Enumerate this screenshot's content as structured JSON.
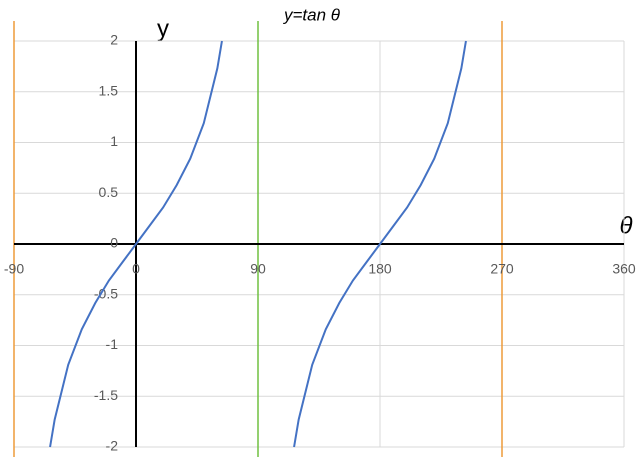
{
  "chart_data": {
    "type": "line",
    "title": "y=tan θ",
    "x_label": "θ",
    "y_label": "y",
    "x": [
      -63.4,
      -60,
      -50,
      -40,
      -30,
      -20,
      -10,
      0,
      10,
      20,
      30,
      40,
      50,
      60,
      63.4,
      90,
      116.6,
      120,
      130,
      140,
      150,
      160,
      170,
      180,
      190,
      200,
      210,
      220,
      230,
      240,
      243.4
    ],
    "series": [
      {
        "name": "tan",
        "color": "#4472c4",
        "values": [
          -2.0,
          -1.73,
          -1.19,
          -0.84,
          -0.58,
          -0.36,
          -0.18,
          0,
          0.18,
          0.36,
          0.58,
          0.84,
          1.19,
          1.73,
          2.0,
          null,
          -2.0,
          -1.73,
          -1.19,
          -0.84,
          -0.58,
          -0.36,
          -0.18,
          0,
          0.18,
          0.36,
          0.58,
          0.84,
          1.19,
          1.73,
          2.0
        ]
      }
    ],
    "vlines": [
      {
        "x": -90,
        "color": "#ed9b3a"
      },
      {
        "x": 90,
        "color": "#70c040"
      },
      {
        "x": 270,
        "color": "#ed9b3a"
      }
    ],
    "xlim": [
      -90,
      360
    ],
    "xticks": [
      -90,
      0,
      90,
      180,
      270,
      360
    ],
    "ylim": [
      -2,
      2
    ],
    "yticks": [
      -2,
      -1.5,
      -1,
      -0.5,
      0,
      0.5,
      1,
      1.5,
      2
    ],
    "grid": true
  }
}
